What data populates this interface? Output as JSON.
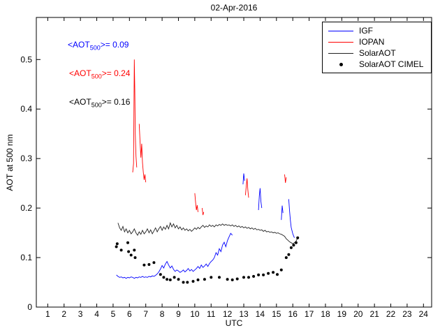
{
  "chart_data": {
    "type": "line",
    "title": "02-Apr-2016",
    "xlabel": "UTC",
    "ylabel": "AOT at 500 nm",
    "xlim": [
      0.3,
      24.5
    ],
    "ylim": [
      0,
      0.585
    ],
    "grid": false,
    "legend_position": "top-right",
    "x_ticks": [
      1,
      2,
      3,
      4,
      5,
      6,
      7,
      8,
      9,
      10,
      11,
      12,
      13,
      14,
      15,
      16,
      17,
      18,
      19,
      20,
      21,
      22,
      23,
      24
    ],
    "y_ticks": [
      0,
      0.1,
      0.2,
      0.3,
      0.4,
      0.5
    ],
    "y_tick_labels": [
      "0",
      "0.1",
      "0.2",
      "0.3",
      "0.4",
      "0.5"
    ],
    "annotations": [
      {
        "prefix": "<AOT",
        "sub": "500",
        "suffix": ">= 0.09",
        "color": "#0000ff"
      },
      {
        "prefix": "<AOT",
        "sub": "500",
        "suffix": ">= 0.24",
        "color": "#ff0000"
      },
      {
        "prefix": "<AOT",
        "sub": "500",
        "suffix": ">= 0.16",
        "color": "#000000"
      }
    ],
    "series": [
      {
        "name": "IGF",
        "type": "line",
        "color": "#0000ff",
        "width": 0.9,
        "points": [
          [
            5.2,
            0.065
          ],
          [
            5.3,
            0.062
          ],
          [
            5.4,
            0.06
          ],
          [
            5.5,
            0.061
          ],
          [
            5.6,
            0.059
          ],
          [
            5.7,
            0.06
          ],
          [
            5.8,
            0.058
          ],
          [
            5.9,
            0.06
          ],
          [
            6.0,
            0.059
          ],
          [
            6.1,
            0.061
          ],
          [
            6.2,
            0.06
          ],
          [
            6.3,
            0.058
          ],
          [
            6.4,
            0.06
          ],
          [
            6.5,
            0.059
          ],
          [
            6.6,
            0.061
          ],
          [
            6.7,
            0.06
          ],
          [
            6.8,
            0.062
          ],
          [
            6.9,
            0.06
          ],
          [
            7.0,
            0.061
          ],
          [
            7.1,
            0.06
          ],
          [
            7.2,
            0.062
          ],
          [
            7.3,
            0.061
          ],
          [
            7.4,
            0.063
          ],
          [
            7.5,
            0.062
          ],
          [
            7.6,
            0.064
          ],
          [
            7.7,
            0.067
          ],
          [
            7.8,
            0.071
          ],
          [
            7.9,
            0.077
          ],
          [
            8.0,
            0.084
          ],
          [
            8.1,
            0.079
          ],
          [
            8.2,
            0.087
          ],
          [
            8.3,
            0.092
          ],
          [
            8.4,
            0.085
          ],
          [
            8.5,
            0.079
          ],
          [
            8.6,
            0.083
          ],
          [
            8.7,
            0.076
          ],
          [
            8.8,
            0.072
          ],
          [
            8.9,
            0.075
          ],
          [
            9.0,
            0.073
          ],
          [
            9.1,
            0.07
          ],
          [
            9.2,
            0.072
          ],
          [
            9.3,
            0.075
          ],
          [
            9.4,
            0.071
          ],
          [
            9.5,
            0.074
          ],
          [
            9.6,
            0.078
          ],
          [
            9.7,
            0.073
          ],
          [
            9.8,
            0.076
          ],
          [
            9.9,
            0.072
          ],
          [
            10.0,
            0.075
          ],
          [
            10.1,
            0.078
          ],
          [
            10.2,
            0.082
          ],
          [
            10.3,
            0.078
          ],
          [
            10.4,
            0.085
          ],
          [
            10.5,
            0.08
          ],
          [
            10.6,
            0.083
          ],
          [
            10.7,
            0.087
          ],
          [
            10.8,
            0.082
          ],
          [
            10.9,
            0.088
          ],
          [
            11.0,
            0.092
          ],
          [
            11.1,
            0.095
          ],
          [
            11.2,
            0.1
          ],
          [
            11.3,
            0.11
          ],
          [
            11.4,
            0.105
          ],
          [
            11.5,
            0.118
          ],
          [
            11.6,
            0.112
          ],
          [
            11.7,
            0.125
          ],
          [
            11.8,
            0.131
          ],
          [
            11.9,
            0.122
          ],
          [
            12.0,
            0.134
          ],
          [
            12.1,
            0.142
          ],
          [
            12.2,
            0.149
          ],
          [
            12.3,
            0.145
          ],
          null,
          [
            12.95,
            0.248
          ],
          [
            13.0,
            0.27
          ],
          [
            13.05,
            0.255
          ],
          null,
          [
            13.9,
            0.196
          ],
          [
            13.95,
            0.225
          ],
          [
            14.0,
            0.24
          ],
          [
            14.05,
            0.213
          ],
          [
            14.1,
            0.2
          ],
          null,
          [
            15.3,
            0.176
          ],
          [
            15.35,
            0.205
          ],
          [
            15.4,
            0.19
          ],
          null,
          [
            15.75,
            0.218
          ],
          [
            15.8,
            0.196
          ],
          [
            15.85,
            0.176
          ],
          [
            15.9,
            0.161
          ],
          [
            16.0,
            0.148
          ],
          [
            16.1,
            0.14
          ]
        ]
      },
      {
        "name": "IOPAN",
        "type": "line",
        "color": "#ff0000",
        "width": 0.9,
        "points": [
          [
            6.2,
            0.272
          ],
          [
            6.25,
            0.29
          ],
          [
            6.3,
            0.5
          ],
          [
            6.33,
            0.44
          ],
          [
            6.36,
            0.35
          ],
          [
            6.4,
            0.305
          ],
          [
            6.45,
            0.282
          ],
          null,
          [
            6.6,
            0.37
          ],
          [
            6.65,
            0.335
          ],
          [
            6.7,
            0.302
          ],
          [
            6.75,
            0.33
          ],
          [
            6.8,
            0.292
          ],
          [
            6.85,
            0.272
          ],
          [
            6.9,
            0.257
          ],
          [
            6.95,
            0.268
          ],
          [
            7.0,
            0.252
          ],
          null,
          [
            10.0,
            0.23
          ],
          [
            10.05,
            0.212
          ],
          [
            10.1,
            0.196
          ],
          [
            10.15,
            0.206
          ],
          [
            10.2,
            0.192
          ],
          null,
          [
            10.45,
            0.2
          ],
          [
            10.5,
            0.186
          ],
          [
            10.55,
            0.192
          ],
          null,
          [
            13.1,
            0.226
          ],
          [
            13.15,
            0.243
          ],
          [
            13.2,
            0.26
          ],
          [
            13.25,
            0.236
          ],
          [
            13.3,
            0.221
          ],
          null,
          [
            15.5,
            0.268
          ],
          [
            15.55,
            0.251
          ],
          [
            15.6,
            0.262
          ]
        ]
      },
      {
        "name": "SolarAOT",
        "type": "line",
        "color": "#222222",
        "width": 0.9,
        "points": [
          [
            5.3,
            0.17
          ],
          [
            5.4,
            0.16
          ],
          [
            5.5,
            0.155
          ],
          [
            5.6,
            0.163
          ],
          [
            5.7,
            0.152
          ],
          [
            5.8,
            0.158
          ],
          [
            5.9,
            0.15
          ],
          [
            6.0,
            0.155
          ],
          [
            6.1,
            0.148
          ],
          [
            6.2,
            0.152
          ],
          [
            6.3,
            0.158
          ],
          [
            6.4,
            0.15
          ],
          [
            6.5,
            0.145
          ],
          [
            6.6,
            0.152
          ],
          [
            6.7,
            0.147
          ],
          [
            6.8,
            0.155
          ],
          [
            6.9,
            0.148
          ],
          [
            7.0,
            0.152
          ],
          [
            7.1,
            0.158
          ],
          [
            7.2,
            0.15
          ],
          [
            7.3,
            0.156
          ],
          [
            7.4,
            0.148
          ],
          [
            7.5,
            0.154
          ],
          [
            7.6,
            0.16
          ],
          [
            7.7,
            0.152
          ],
          [
            7.8,
            0.158
          ],
          [
            7.9,
            0.163
          ],
          [
            8.0,
            0.155
          ],
          [
            8.1,
            0.162
          ],
          [
            8.2,
            0.157
          ],
          [
            8.3,
            0.165
          ],
          [
            8.4,
            0.158
          ],
          [
            8.5,
            0.17
          ],
          [
            8.6,
            0.162
          ],
          [
            8.7,
            0.168
          ],
          [
            8.8,
            0.16
          ],
          [
            8.9,
            0.165
          ],
          [
            9.0,
            0.158
          ],
          [
            9.1,
            0.162
          ],
          [
            9.2,
            0.156
          ],
          [
            9.3,
            0.16
          ],
          [
            9.4,
            0.155
          ],
          [
            9.5,
            0.158
          ],
          [
            9.6,
            0.154
          ],
          [
            9.7,
            0.157
          ],
          [
            9.8,
            0.153
          ],
          [
            9.9,
            0.156
          ],
          [
            10.0,
            0.16
          ],
          [
            10.1,
            0.157
          ],
          [
            10.2,
            0.161
          ],
          [
            10.3,
            0.158
          ],
          [
            10.4,
            0.162
          ],
          [
            10.5,
            0.165
          ],
          [
            10.6,
            0.161
          ],
          [
            10.7,
            0.164
          ],
          [
            10.8,
            0.162
          ],
          [
            10.9,
            0.166
          ],
          [
            11.0,
            0.163
          ],
          [
            11.1,
            0.165
          ],
          [
            11.2,
            0.162
          ],
          [
            11.3,
            0.166
          ],
          [
            11.4,
            0.164
          ],
          [
            11.5,
            0.167
          ],
          [
            11.6,
            0.165
          ],
          [
            11.7,
            0.168
          ],
          [
            11.8,
            0.165
          ],
          [
            11.9,
            0.167
          ],
          [
            12.0,
            0.165
          ],
          [
            12.1,
            0.166
          ],
          [
            12.2,
            0.164
          ],
          [
            12.3,
            0.166
          ],
          [
            12.4,
            0.163
          ],
          [
            12.5,
            0.165
          ],
          [
            12.6,
            0.162
          ],
          [
            12.7,
            0.164
          ],
          [
            12.8,
            0.161
          ],
          [
            12.9,
            0.163
          ],
          [
            13.0,
            0.16
          ],
          [
            13.1,
            0.162
          ],
          [
            13.2,
            0.159
          ],
          [
            13.3,
            0.161
          ],
          [
            13.4,
            0.158
          ],
          [
            13.5,
            0.16
          ],
          [
            13.6,
            0.157
          ],
          [
            13.7,
            0.159
          ],
          [
            13.8,
            0.156
          ],
          [
            13.9,
            0.157
          ],
          [
            14.0,
            0.155
          ],
          [
            14.1,
            0.156
          ],
          [
            14.2,
            0.153
          ],
          [
            14.3,
            0.155
          ],
          [
            14.4,
            0.152
          ],
          [
            14.5,
            0.153
          ],
          [
            14.6,
            0.151
          ],
          [
            14.7,
            0.152
          ],
          [
            14.8,
            0.15
          ],
          [
            14.9,
            0.151
          ],
          [
            15.0,
            0.149
          ],
          [
            15.1,
            0.15
          ],
          [
            15.2,
            0.148
          ],
          [
            15.3,
            0.147
          ],
          [
            15.4,
            0.145
          ],
          [
            15.5,
            0.143
          ],
          [
            15.6,
            0.138
          ],
          [
            15.7,
            0.135
          ],
          [
            15.8,
            0.132
          ],
          [
            15.9,
            0.13
          ],
          [
            16.0,
            0.128
          ],
          [
            16.1,
            0.13
          ],
          [
            16.2,
            0.133
          ],
          [
            16.3,
            0.14
          ]
        ]
      },
      {
        "name": "SolarAOT CIMEL",
        "type": "scatter",
        "color": "#000000",
        "points": [
          [
            5.2,
            0.122
          ],
          [
            5.25,
            0.128
          ],
          [
            5.5,
            0.115
          ],
          [
            5.9,
            0.13
          ],
          [
            5.95,
            0.112
          ],
          [
            6.1,
            0.105
          ],
          [
            6.3,
            0.115
          ],
          [
            6.35,
            0.1
          ],
          [
            6.9,
            0.085
          ],
          [
            7.2,
            0.086
          ],
          [
            7.5,
            0.09
          ],
          [
            7.9,
            0.066
          ],
          [
            8.1,
            0.06
          ],
          [
            8.3,
            0.056
          ],
          [
            8.5,
            0.055
          ],
          [
            8.75,
            0.06
          ],
          [
            9.0,
            0.056
          ],
          [
            9.3,
            0.05
          ],
          [
            9.55,
            0.05
          ],
          [
            9.9,
            0.052
          ],
          [
            10.2,
            0.055
          ],
          [
            10.6,
            0.056
          ],
          [
            11.0,
            0.06
          ],
          [
            11.5,
            0.06
          ],
          [
            12.0,
            0.056
          ],
          [
            12.3,
            0.055
          ],
          [
            12.6,
            0.057
          ],
          [
            13.0,
            0.06
          ],
          [
            13.3,
            0.06
          ],
          [
            13.6,
            0.062
          ],
          [
            13.9,
            0.065
          ],
          [
            14.2,
            0.065
          ],
          [
            14.5,
            0.068
          ],
          [
            14.8,
            0.07
          ],
          [
            15.05,
            0.066
          ],
          [
            15.3,
            0.075
          ],
          [
            15.6,
            0.1
          ],
          [
            15.75,
            0.106
          ],
          [
            15.9,
            0.12
          ],
          [
            16.05,
            0.125
          ],
          [
            16.2,
            0.13
          ],
          [
            16.3,
            0.14
          ]
        ]
      }
    ]
  }
}
